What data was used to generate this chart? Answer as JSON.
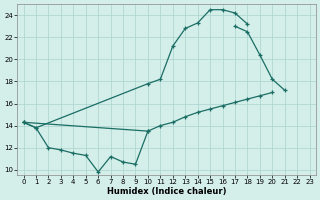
{
  "xlabel": "Humidex (Indice chaleur)",
  "background_color": "#d4eeea",
  "grid_color": "#aad4ce",
  "line_color": "#1a6e64",
  "x_values": [
    0,
    1,
    2,
    3,
    4,
    5,
    6,
    7,
    8,
    9,
    10,
    11,
    12,
    13,
    14,
    15,
    16,
    17,
    18,
    19,
    20,
    21,
    22,
    23
  ],
  "series_upper": [
    14.3,
    13.8,
    null,
    null,
    null,
    null,
    null,
    null,
    null,
    null,
    17.8,
    18.2,
    21.2,
    22.8,
    23.3,
    24.5,
    24.5,
    24.2,
    23.2,
    null,
    null,
    null,
    null,
    null
  ],
  "series_lower_diag": [
    14.3,
    null,
    null,
    null,
    null,
    null,
    null,
    null,
    null,
    null,
    13.5,
    14.0,
    14.3,
    14.8,
    15.2,
    15.5,
    15.8,
    16.1,
    16.4,
    16.7,
    17.0,
    null,
    null,
    null
  ],
  "series_right": [
    null,
    null,
    null,
    null,
    null,
    null,
    null,
    null,
    null,
    null,
    null,
    null,
    null,
    null,
    null,
    null,
    null,
    null,
    22.5,
    20.4,
    18.2,
    17.2,
    null,
    null
  ],
  "series_zigzag": [
    14.3,
    13.8,
    12.0,
    11.8,
    11.5,
    11.3,
    9.8,
    11.2,
    10.7,
    10.5,
    13.5,
    null,
    null,
    null,
    null,
    null,
    null,
    null,
    null,
    null,
    null,
    null,
    null,
    null
  ],
  "series_right2": [
    null,
    null,
    null,
    null,
    null,
    null,
    null,
    null,
    null,
    null,
    null,
    null,
    null,
    null,
    null,
    null,
    null,
    23.0,
    22.5,
    20.4,
    18.2,
    17.2,
    null,
    null
  ],
  "xlim": [
    -0.5,
    23.5
  ],
  "ylim": [
    9.5,
    25.0
  ],
  "yticks": [
    10,
    12,
    14,
    16,
    18,
    20,
    22,
    24
  ],
  "xticks": [
    0,
    1,
    2,
    3,
    4,
    5,
    6,
    7,
    8,
    9,
    10,
    11,
    12,
    13,
    14,
    15,
    16,
    17,
    18,
    19,
    20,
    21,
    22,
    23
  ]
}
